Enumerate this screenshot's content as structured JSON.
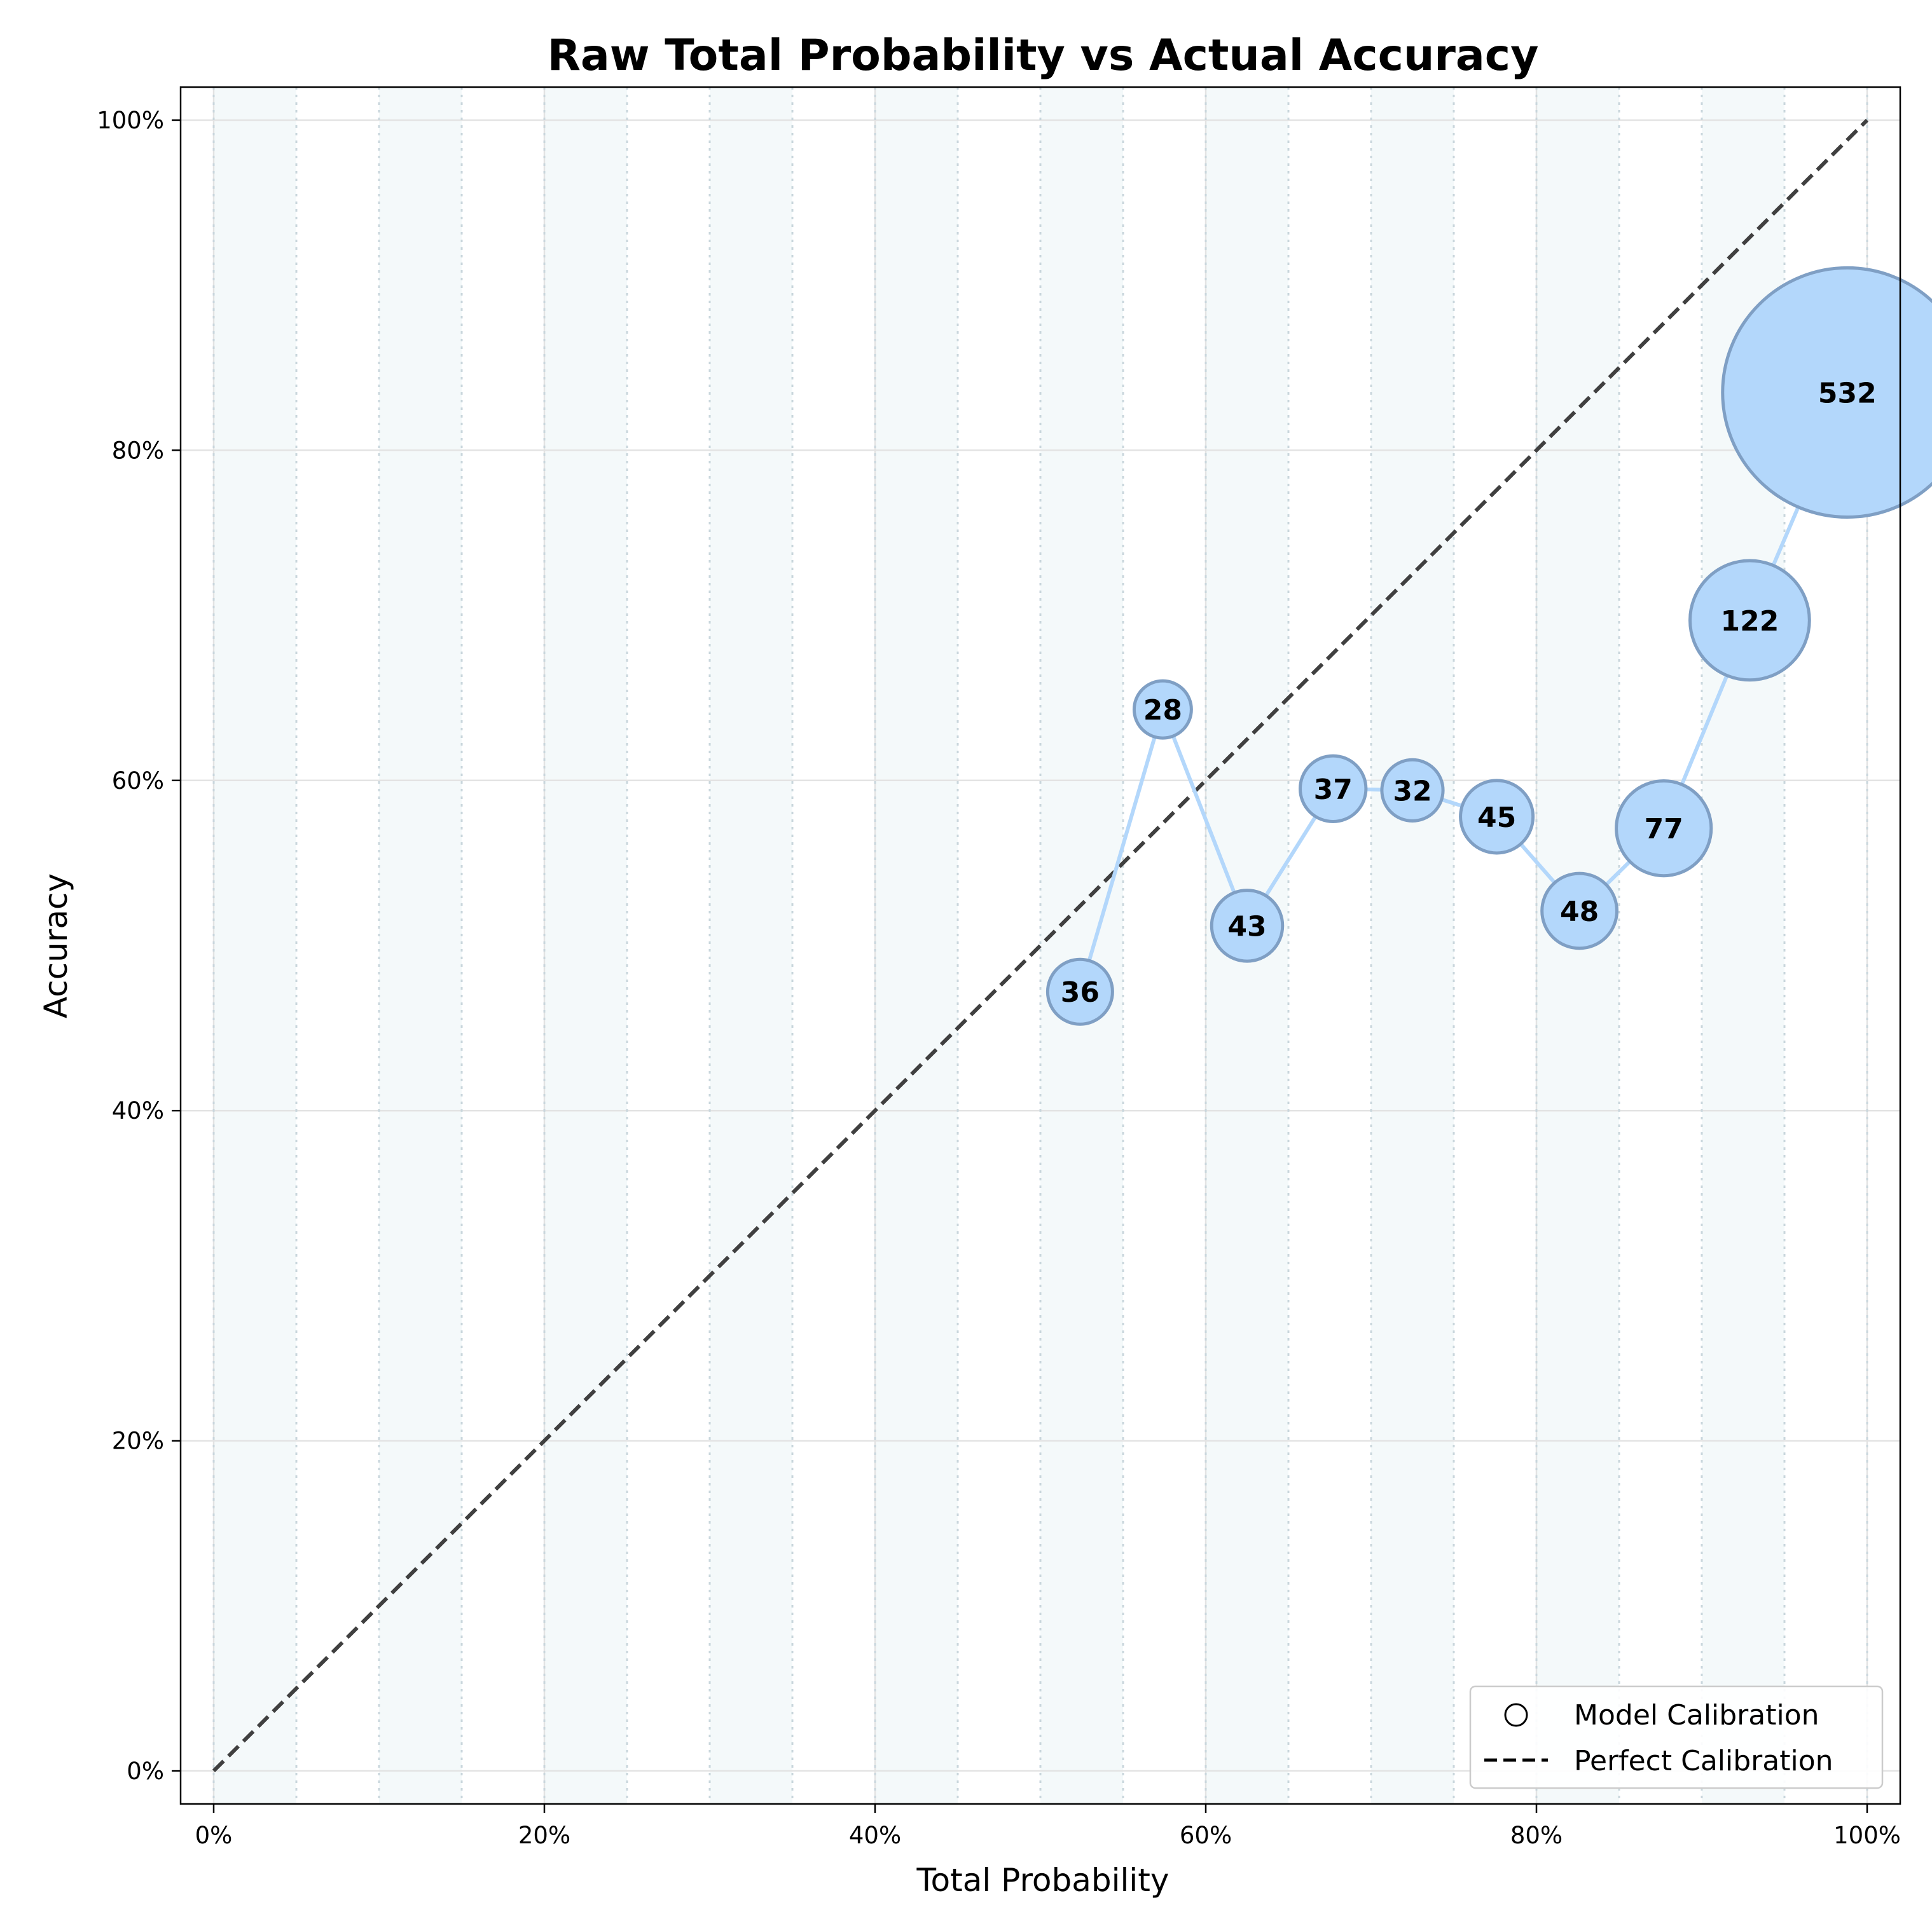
{
  "chart_data": {
    "type": "scatter",
    "title": "Raw Total Probability vs Actual Accuracy",
    "xlabel": "Total Probability",
    "ylabel": "Accuracy",
    "xlim": [
      -0.02,
      1.02
    ],
    "ylim": [
      -0.02,
      1.02
    ],
    "x_ticks": [
      0,
      0.2,
      0.4,
      0.6,
      0.8,
      1.0
    ],
    "x_tick_labels": [
      "0%",
      "20%",
      "40%",
      "60%",
      "80%",
      "100%"
    ],
    "y_ticks": [
      0,
      0.2,
      0.4,
      0.6,
      0.8,
      1.0
    ],
    "y_tick_labels": [
      "0%",
      "20%",
      "40%",
      "60%",
      "80%",
      "100%"
    ],
    "grid": true,
    "bin_edges": [
      0,
      0.05,
      0.1,
      0.15,
      0.2,
      0.25,
      0.3,
      0.35,
      0.4,
      0.45,
      0.5,
      0.55,
      0.6,
      0.65,
      0.7,
      0.75,
      0.8,
      0.85,
      0.9,
      0.95,
      1.0
    ],
    "series": [
      {
        "name": "Model Calibration",
        "x": [
          0.524,
          0.574,
          0.625,
          0.677,
          0.725,
          0.776,
          0.826,
          0.877,
          0.929,
          0.988
        ],
        "y": [
          0.472,
          0.643,
          0.512,
          0.595,
          0.594,
          0.578,
          0.521,
          0.571,
          0.697,
          0.835
        ],
        "counts": [
          "36",
          "28",
          "43",
          "37",
          "32",
          "45",
          "48",
          "77",
          "122",
          "532"
        ],
        "color": "#b3d7fb",
        "edge_color": "#7f9fc4"
      },
      {
        "name": "Perfect Calibration",
        "x": [
          0,
          1
        ],
        "y": [
          0,
          1
        ],
        "color": "#404040",
        "style": "dashed"
      }
    ],
    "legend_position": "bottom-right",
    "legend": [
      "Model Calibration",
      "Perfect Calibration"
    ],
    "band_color": "#f4f9fa"
  }
}
